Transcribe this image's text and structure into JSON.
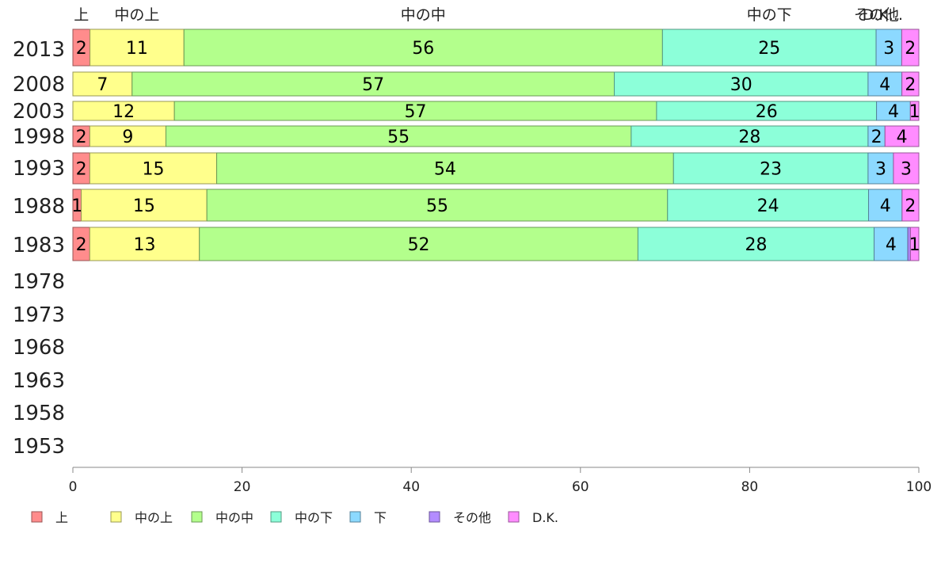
{
  "chart_data": {
    "type": "bar",
    "orientation": "horizontal",
    "stacked": "percent",
    "categories": [
      "2013",
      "2008",
      "2003",
      "1998",
      "1993",
      "1988",
      "1983",
      "1978",
      "1973",
      "1968",
      "1963",
      "1958",
      "1953"
    ],
    "series": [
      {
        "name": "上",
        "color": "#ff8c8c",
        "values": [
          2,
          0,
          0,
          2,
          2,
          1,
          2,
          null,
          null,
          null,
          null,
          null,
          null
        ]
      },
      {
        "name": "中の上",
        "color": "#ffff8c",
        "values": [
          11,
          7,
          12,
          9,
          15,
          15,
          13,
          null,
          null,
          null,
          null,
          null,
          null
        ]
      },
      {
        "name": "中の中",
        "color": "#b3ff8c",
        "values": [
          56,
          57,
          57,
          55,
          54,
          55,
          52,
          null,
          null,
          null,
          null,
          null,
          null
        ]
      },
      {
        "name": "中の下",
        "color": "#8cffd9",
        "values": [
          25,
          30,
          26,
          28,
          23,
          24,
          28,
          null,
          null,
          null,
          null,
          null,
          null
        ]
      },
      {
        "name": "下",
        "color": "#8cd9ff",
        "values": [
          3,
          4,
          4,
          2,
          3,
          4,
          4,
          null,
          null,
          null,
          null,
          null,
          null
        ]
      },
      {
        "name": "その他",
        "color": "#b38cff",
        "values": [
          0,
          0,
          0,
          0,
          0,
          0,
          0.3,
          null,
          null,
          null,
          null,
          null,
          null
        ]
      },
      {
        "name": "D.K.",
        "color": "#ff8cff",
        "values": [
          2,
          2,
          1,
          4,
          3,
          2,
          1,
          null,
          null,
          null,
          null,
          null,
          null
        ]
      }
    ],
    "top_labels": [
      "上",
      "中の上",
      "中の中",
      "中の下",
      "",
      "その他",
      "D.K..."
    ],
    "x_ticks": [
      "0",
      "20",
      "40",
      "60",
      "80",
      "100"
    ],
    "xlim": [
      0,
      100
    ],
    "legend": {
      "placement": "bottom-left",
      "entries": [
        "上",
        "中の上",
        "中の中",
        "中の下",
        "下",
        "その他",
        "D.K."
      ]
    },
    "grid": false
  }
}
